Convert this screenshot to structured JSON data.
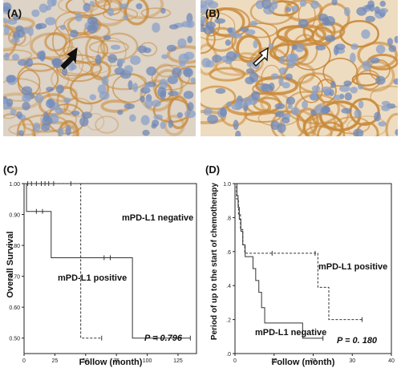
{
  "panels": {
    "a": {
      "label": "(A)"
    },
    "b": {
      "label": "(B)"
    },
    "c": {
      "label": "(C)"
    },
    "d": {
      "label": "(D)"
    }
  },
  "histology": {
    "arrow_a": "solid-black-arrow",
    "arrow_b": "open-white-arrow",
    "stain_color": "#c98a3a"
  },
  "chart_data": [
    {
      "type": "line",
      "panel": "(C)",
      "title": "",
      "xlabel": "Follow (month)",
      "ylabel": "Overall Survival",
      "xlim": [
        0,
        140
      ],
      "ylim": [
        0,
        1.0
      ],
      "xticks": [
        "0",
        "25",
        "50",
        "75",
        "100",
        "125"
      ],
      "yticks": [
        "0.50",
        "0.60",
        "0.70",
        "0.80",
        "0.90",
        "1.00"
      ],
      "pvalue": "P = 0.796",
      "series": [
        {
          "name": "mPD-L1 negative",
          "style": "solid",
          "steps": [
            [
              0,
              1.0
            ],
            [
              2,
              0.91
            ],
            [
              22,
              0.76
            ],
            [
              88,
              0.5
            ],
            [
              135,
              0.5
            ]
          ],
          "censors": [
            [
              10,
              0.91
            ],
            [
              15,
              0.91
            ],
            [
              65,
              0.76
            ],
            [
              70,
              0.76
            ],
            [
              108,
              0.5
            ],
            [
              135,
              0.5
            ]
          ]
        },
        {
          "name": "mPD-L1 positive",
          "style": "dashed",
          "steps": [
            [
              0,
              1.0
            ],
            [
              46,
              0.5
            ],
            [
              63,
              0.5
            ]
          ],
          "censors": [
            [
              3,
              1.0
            ],
            [
              6,
              1.0
            ],
            [
              10,
              1.0
            ],
            [
              14,
              1.0
            ],
            [
              17,
              1.0
            ],
            [
              20,
              1.0
            ],
            [
              24,
              1.0
            ],
            [
              38,
              1.0
            ],
            [
              63,
              0.5
            ]
          ]
        }
      ]
    },
    {
      "type": "line",
      "panel": "(D)",
      "title": "",
      "xlabel": "Follow (month)",
      "ylabel": "Period of up to the start of chemotherapy",
      "xlim": [
        0,
        40
      ],
      "ylim": [
        0,
        1.0
      ],
      "xticks": [
        "0",
        "10",
        "20",
        "30",
        "40"
      ],
      "yticks": [
        ".0",
        ".2",
        ".4",
        ".6",
        ".8",
        "1.0"
      ],
      "pvalue": "P = 0. 180",
      "series": [
        {
          "name": "mPD-L1 negative",
          "style": "solid",
          "steps": [
            [
              0,
              1.0
            ],
            [
              0.5,
              0.93
            ],
            [
              0.8,
              0.86
            ],
            [
              1.1,
              0.79
            ],
            [
              1.5,
              0.72
            ],
            [
              2.0,
              0.64
            ],
            [
              2.6,
              0.57
            ],
            [
              4.6,
              0.5
            ],
            [
              5.3,
              0.43
            ],
            [
              6.1,
              0.36
            ],
            [
              6.8,
              0.27
            ],
            [
              7.6,
              0.18
            ],
            [
              17.3,
              0.09
            ],
            [
              22.5,
              0.09
            ]
          ],
          "censors": [
            [
              22.5,
              0.09
            ]
          ]
        },
        {
          "name": "mPD-L1 positive",
          "style": "dashed",
          "steps": [
            [
              0,
              1.0
            ],
            [
              0.4,
              0.91
            ],
            [
              0.9,
              0.82
            ],
            [
              1.4,
              0.73
            ],
            [
              2.0,
              0.64
            ],
            [
              2.5,
              0.59
            ],
            [
              21.2,
              0.39
            ],
            [
              24.0,
              0.2
            ],
            [
              32.5,
              0.2
            ]
          ],
          "censors": [
            [
              9.5,
              0.59
            ],
            [
              20.5,
              0.59
            ],
            [
              32.5,
              0.2
            ]
          ]
        }
      ]
    }
  ]
}
